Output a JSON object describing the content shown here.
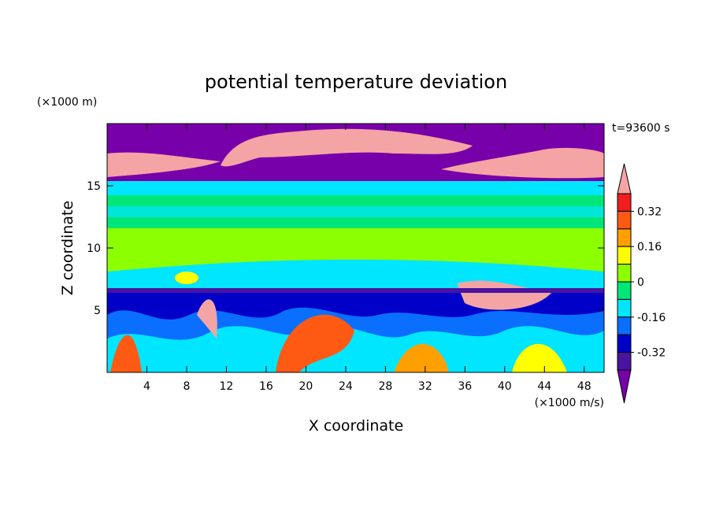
{
  "chart_data": {
    "type": "contour",
    "title": "potential temperature deviation",
    "x_label": "X coordinate",
    "y_label": "Z coordinate",
    "x_units": "(×1000 m/s)",
    "y_units": "(×1000 m)",
    "time_label": "t=93600 s",
    "xlim": [
      0,
      50
    ],
    "ylim": [
      0,
      20
    ],
    "xticks": [
      4,
      8,
      12,
      16,
      20,
      24,
      28,
      32,
      36,
      40,
      44,
      48
    ],
    "yticks": [
      5,
      10,
      15
    ],
    "colorbar": {
      "clim": [
        -0.4,
        0.4
      ],
      "ticks": [
        0.32,
        0.16,
        0,
        -0.16,
        -0.32
      ],
      "colors": [
        "#f4a4a4",
        "#f01e1e",
        "#ff5a14",
        "#ffa000",
        "#ffff00",
        "#8cff00",
        "#00e678",
        "#00e6ff",
        "#0a6eff",
        "#0000c8",
        "#4a14a0",
        "#7800aa"
      ]
    }
  }
}
